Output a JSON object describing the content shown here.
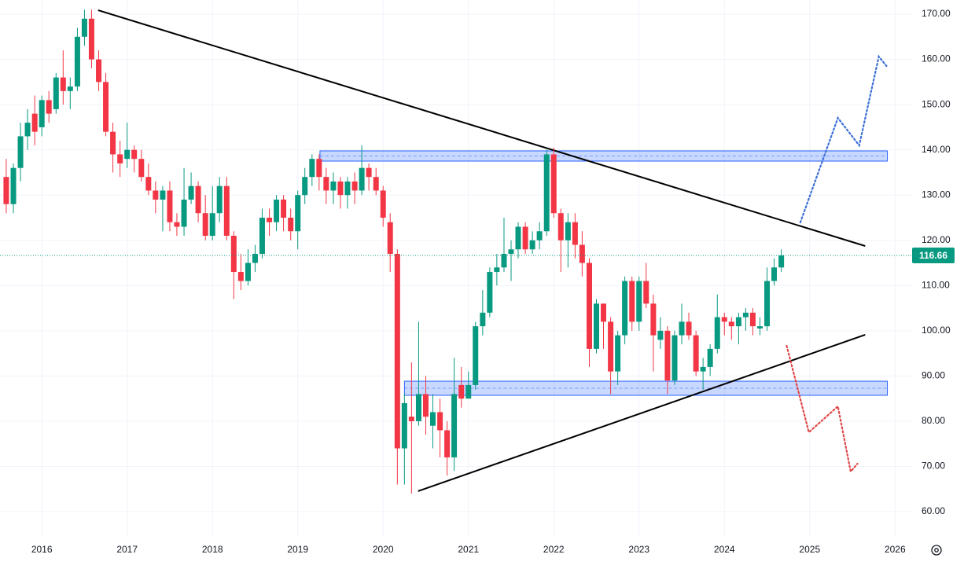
{
  "chart_data": {
    "type": "candlestick",
    "up_color": "#089981",
    "down_color": "#f23645",
    "grid": true,
    "xlim": [
      2015.51,
      2026.2
    ],
    "xticks": [
      2016,
      2017,
      2018,
      2019,
      2020,
      2021,
      2022,
      2023,
      2024,
      2025,
      2026
    ],
    "ylim": [
      54.45,
      173.13
    ],
    "yticks": [
      {
        "value": 60,
        "label": "60.00"
      },
      {
        "value": 70,
        "label": "70.00"
      },
      {
        "value": 80,
        "label": "80.00"
      },
      {
        "value": 90,
        "label": "90.00"
      },
      {
        "value": 100,
        "label": "100.00"
      },
      {
        "value": 110,
        "label": "110.00"
      },
      {
        "value": 120,
        "label": "120.00"
      },
      {
        "value": 130,
        "label": "130.00"
      },
      {
        "value": 140,
        "label": "140.00"
      },
      {
        "value": 150,
        "label": "150.00"
      },
      {
        "value": 160,
        "label": "160.00"
      },
      {
        "value": 170,
        "label": "170.00"
      }
    ],
    "x": [
      2015.583,
      2015.667,
      2015.75,
      2015.833,
      2015.917,
      2016,
      2016.083,
      2016.167,
      2016.25,
      2016.333,
      2016.417,
      2016.5,
      2016.583,
      2016.667,
      2016.75,
      2016.833,
      2016.917,
      2017,
      2017.083,
      2017.167,
      2017.25,
      2017.333,
      2017.417,
      2017.5,
      2017.583,
      2017.667,
      2017.75,
      2017.833,
      2017.917,
      2018,
      2018.083,
      2018.167,
      2018.25,
      2018.333,
      2018.417,
      2018.5,
      2018.583,
      2018.667,
      2018.75,
      2018.833,
      2018.917,
      2019,
      2019.083,
      2019.167,
      2019.25,
      2019.333,
      2019.417,
      2019.5,
      2019.583,
      2019.667,
      2019.75,
      2019.833,
      2019.917,
      2020,
      2020.083,
      2020.167,
      2020.25,
      2020.333,
      2020.417,
      2020.5,
      2020.583,
      2020.667,
      2020.75,
      2020.833,
      2020.917,
      2021,
      2021.083,
      2021.167,
      2021.25,
      2021.333,
      2021.417,
      2021.5,
      2021.583,
      2021.667,
      2021.75,
      2021.833,
      2021.917,
      2022,
      2022.083,
      2022.167,
      2022.25,
      2022.333,
      2022.417,
      2022.5,
      2022.583,
      2022.667,
      2022.75,
      2022.833,
      2022.917,
      2023,
      2023.083,
      2023.167,
      2023.25,
      2023.333,
      2023.417,
      2023.5,
      2023.583,
      2023.667,
      2023.75,
      2023.833,
      2023.917,
      2024,
      2024.083,
      2024.167,
      2024.25,
      2024.333,
      2024.417,
      2024.5,
      2024.583,
      2024.667
    ],
    "open": [
      134,
      128,
      136,
      143,
      148,
      145,
      151,
      149,
      156,
      153,
      154,
      165,
      169,
      160,
      155,
      144,
      139,
      138,
      140,
      138,
      134,
      131,
      129,
      131,
      124,
      123,
      129,
      132,
      126,
      121,
      126,
      132,
      121,
      113,
      111,
      115,
      117,
      125,
      124,
      129,
      125,
      122,
      130,
      134,
      138,
      134,
      131,
      133,
      130,
      133,
      131,
      136,
      134,
      131,
      124,
      117,
      74,
      81,
      80,
      86,
      79,
      82,
      78,
      72,
      88,
      85,
      88,
      101,
      104,
      113,
      114,
      117,
      118,
      123,
      118,
      120,
      122,
      139,
      126,
      120,
      124,
      119,
      115,
      96,
      106,
      102,
      91,
      99,
      111,
      102,
      111,
      106,
      98,
      100,
      89,
      99,
      102,
      99,
      91,
      92,
      96,
      103,
      102,
      101,
      103,
      104,
      100.5,
      101,
      111,
      114
    ],
    "high": [
      138,
      137,
      146,
      149,
      152,
      152,
      153,
      157,
      162,
      156,
      167,
      171,
      171,
      162,
      157,
      146,
      142,
      146,
      141,
      140,
      137,
      133,
      132,
      133,
      126,
      136,
      135,
      133,
      130,
      132,
      134,
      134,
      122,
      117,
      118,
      119,
      127,
      127,
      130,
      130,
      127,
      131,
      136,
      139,
      139,
      136,
      135,
      134,
      134,
      135,
      141,
      137,
      136,
      132,
      126,
      118,
      86,
      93,
      102,
      90,
      86,
      85,
      80,
      94,
      92,
      91,
      102,
      109,
      114,
      117,
      125,
      120,
      124,
      124,
      122,
      124,
      140,
      140.5,
      127,
      126,
      126,
      122,
      116,
      107,
      106,
      103,
      100,
      112,
      112,
      112,
      115,
      108,
      103,
      101,
      100,
      106,
      104,
      100,
      94,
      97,
      108,
      104,
      103,
      104,
      105,
      105,
      103,
      114,
      116,
      118
    ],
    "low": [
      126,
      126,
      133,
      140,
      141,
      143,
      146,
      148,
      150,
      149,
      153,
      163,
      158,
      153,
      143,
      135,
      134,
      136,
      135,
      133,
      130,
      126,
      122,
      122,
      121,
      121,
      128,
      124,
      120,
      120,
      124,
      120,
      107,
      109,
      110,
      113,
      116,
      121,
      122,
      122,
      120,
      118,
      128,
      132,
      131,
      128,
      128,
      127,
      127,
      128,
      130,
      131,
      130,
      123,
      113,
      66,
      66,
      64,
      79,
      77,
      74,
      72,
      68,
      69,
      83,
      85,
      87,
      99,
      103,
      110,
      113,
      111,
      116,
      117,
      117,
      118,
      121,
      125,
      113,
      114,
      116,
      112,
      92,
      95,
      96,
      86,
      88,
      97,
      100,
      100,
      105,
      91,
      96,
      86,
      88,
      97,
      98,
      90,
      87,
      90,
      95,
      99,
      98,
      97,
      100,
      99,
      99,
      100,
      110,
      113
    ],
    "close": [
      128,
      136,
      143,
      146,
      144,
      151,
      148,
      156,
      153,
      154,
      165,
      169,
      160,
      155,
      144,
      139,
      137,
      140,
      138,
      134,
      131,
      129,
      131,
      124,
      123,
      129,
      132,
      126,
      121,
      126,
      132,
      121,
      113,
      111,
      115,
      117,
      125,
      124,
      129,
      125,
      122,
      130,
      134,
      138,
      134,
      131,
      133,
      130,
      133,
      131,
      136,
      134,
      131,
      125,
      117,
      74,
      84,
      80,
      86,
      81,
      82,
      78,
      72,
      86,
      85,
      88,
      101,
      104,
      113,
      114,
      117,
      118,
      123,
      118,
      120,
      122,
      139,
      126,
      120,
      124,
      119,
      115,
      96,
      106,
      102,
      91,
      99,
      111,
      102,
      111,
      106,
      99,
      100,
      89,
      99,
      102,
      99,
      91,
      92,
      96,
      103,
      102,
      101,
      103,
      104,
      101,
      101,
      111,
      114,
      116.66
    ],
    "trendlines": [
      {
        "color": "#000000",
        "x": [
          2016.66,
          2025.65
        ],
        "y": [
          170.87,
          118.74
        ]
      },
      {
        "color": "#000000",
        "x": [
          2020.41,
          2025.65
        ],
        "y": [
          64.53,
          99.11
        ]
      }
    ],
    "zones": [
      {
        "color": "#2962ff",
        "x": [
          2019.26,
          2025.91
        ],
        "y": [
          137.51,
          139.77
        ]
      },
      {
        "color": "#2962ff",
        "x": [
          2020.25,
          2025.91
        ],
        "y": [
          85.73,
          88.85
        ]
      }
    ],
    "projections": [
      {
        "color": "#3d6fd6",
        "x": [
          2024.89,
          2025.33,
          2025.58,
          2025.81,
          2025.9
        ],
        "y": [
          123.95,
          147.06,
          140.98,
          160.62,
          158.53
        ]
      },
      {
        "color": "#e04848",
        "x": [
          2024.73,
          2024.99,
          2025.33,
          2025.48,
          2025.56
        ],
        "y": [
          96.67,
          77.56,
          83.29,
          68.87,
          70.61
        ]
      }
    ]
  }
}
